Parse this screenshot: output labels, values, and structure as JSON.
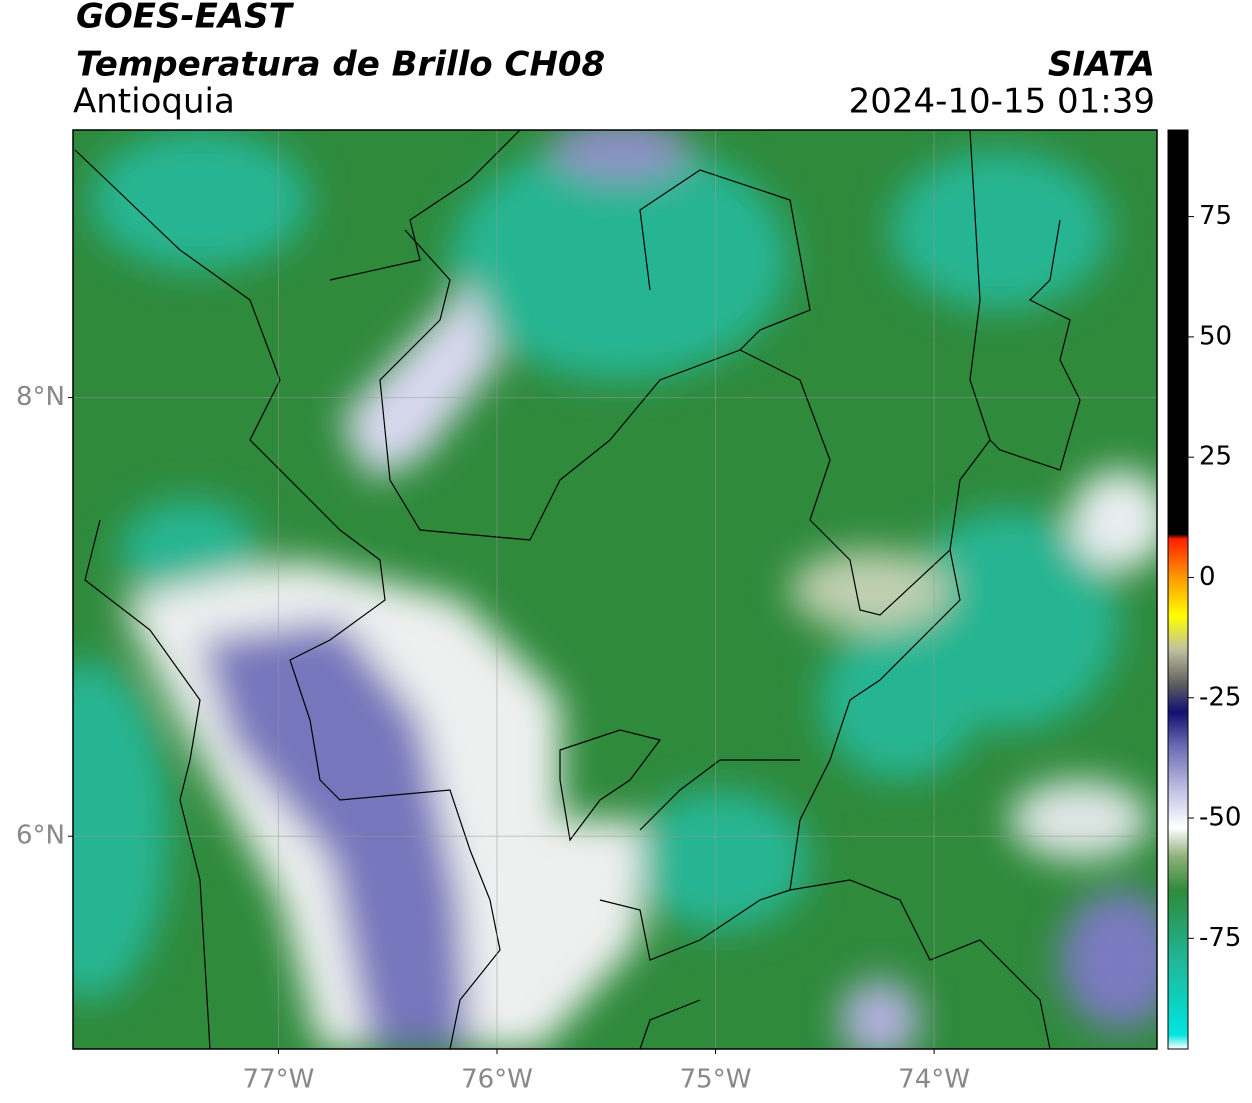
{
  "header": {
    "title": "GOES-EAST",
    "subtitle": "Temperatura de Brillo CH08",
    "region": "Antioquia",
    "source": "SIATA",
    "timestamp": "2024-10-15 01:39"
  },
  "chart_data": {
    "type": "map",
    "xlim": [
      -77.94,
      -72.98
    ],
    "ylim": [
      5.03,
      9.22
    ],
    "xticks": [
      {
        "value": -77,
        "label": "77°W"
      },
      {
        "value": -76,
        "label": "76°W"
      },
      {
        "value": -75,
        "label": "75°W"
      },
      {
        "value": -74,
        "label": "74°W"
      }
    ],
    "yticks": [
      {
        "value": 6,
        "label": "6°N"
      },
      {
        "value": 8,
        "label": "8°N"
      }
    ],
    "grid": true,
    "colorbar": {
      "lim": [
        -98,
        93
      ],
      "ticks": [
        -75,
        -50,
        -25,
        0,
        25,
        50,
        75
      ],
      "stops": [
        {
          "value": -98,
          "color": "#ffffff"
        },
        {
          "value": -95,
          "color": "#00e5e0"
        },
        {
          "value": -80,
          "color": "#1fb89a"
        },
        {
          "value": -65,
          "color": "#2e8b3a"
        },
        {
          "value": -58,
          "color": "#8fb07a"
        },
        {
          "value": -52,
          "color": "#ffffff"
        },
        {
          "value": -45,
          "color": "#c8c8e8"
        },
        {
          "value": -35,
          "color": "#6a6ab4"
        },
        {
          "value": -28,
          "color": "#101070"
        },
        {
          "value": -22,
          "color": "#606060"
        },
        {
          "value": -15,
          "color": "#c0c0a0"
        },
        {
          "value": -8,
          "color": "#ffff00"
        },
        {
          "value": 0,
          "color": "#ff9900"
        },
        {
          "value": 8,
          "color": "#ff2000"
        },
        {
          "value": 9,
          "color": "#000000"
        },
        {
          "value": 93,
          "color": "#000000"
        }
      ]
    }
  }
}
